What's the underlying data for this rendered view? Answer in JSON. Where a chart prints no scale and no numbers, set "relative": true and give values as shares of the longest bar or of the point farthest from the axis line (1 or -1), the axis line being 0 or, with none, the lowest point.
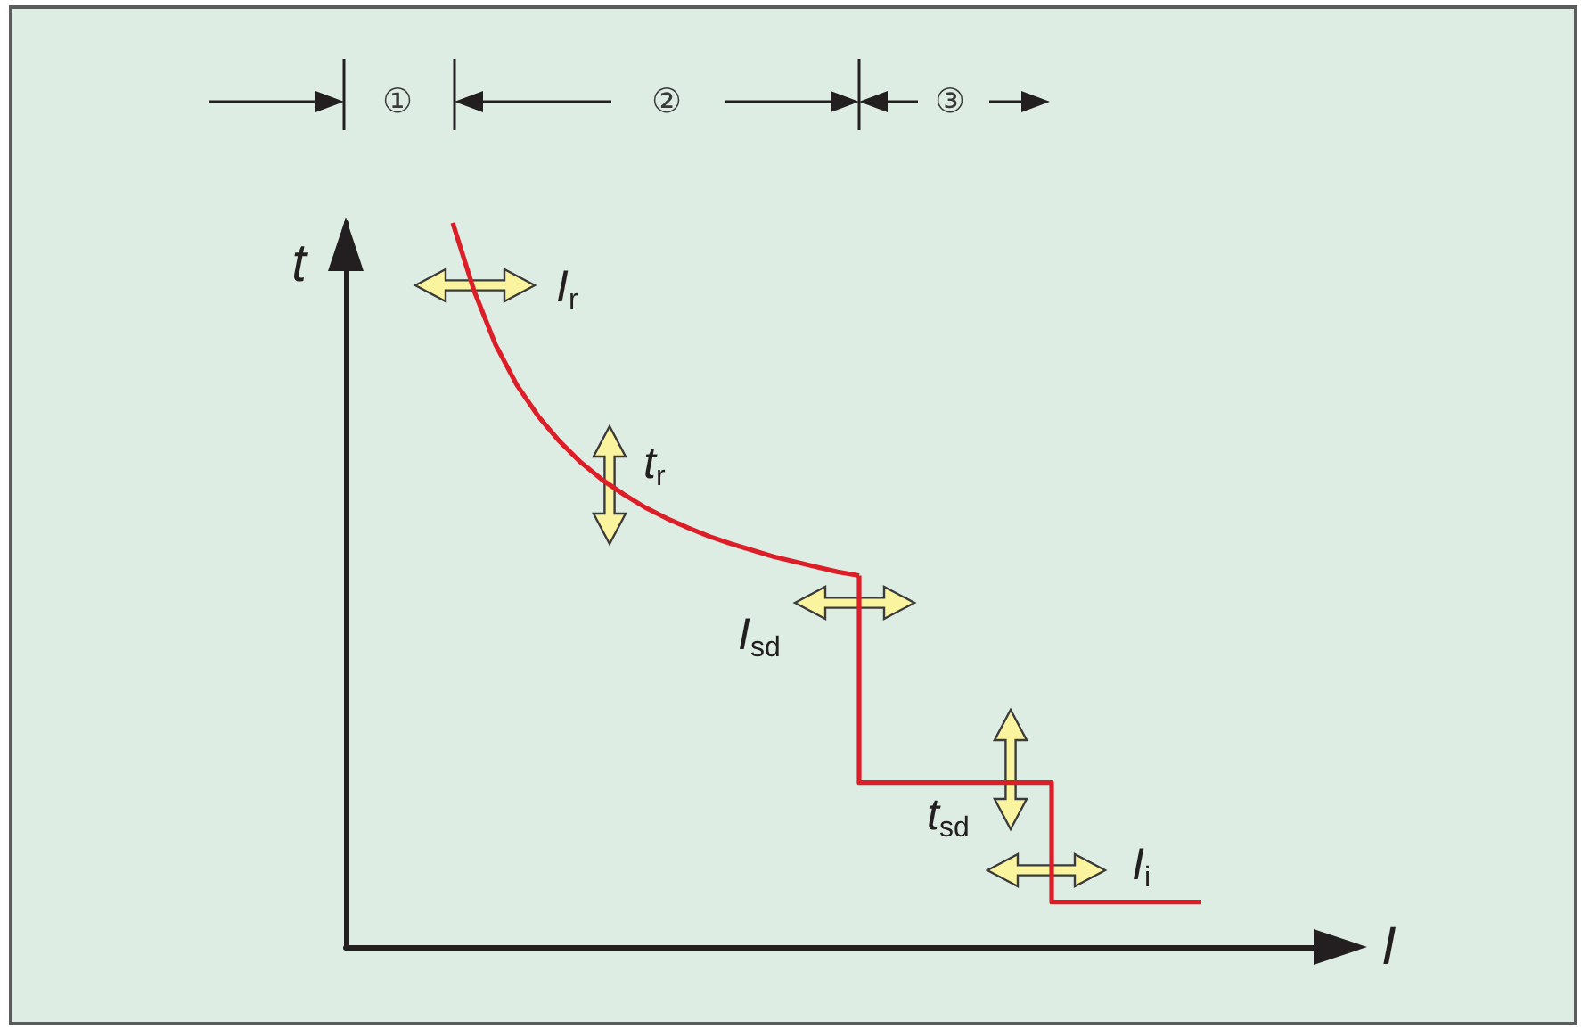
{
  "chart_data": {
    "type": "line",
    "relative": true,
    "xlabel": "I",
    "ylabel": "t",
    "categories": [
      null,
      null,
      null,
      null,
      null,
      null,
      null,
      null,
      null,
      null,
      null,
      null,
      null,
      null,
      null,
      null,
      null,
      null,
      null,
      null,
      null,
      null,
      null,
      null,
      null,
      null,
      null,
      null,
      null,
      null,
      null,
      null,
      null,
      null,
      null,
      null,
      null,
      null,
      null,
      null,
      null,
      null,
      null,
      null,
      null,
      null,
      null,
      null
    ],
    "series": [
      {
        "color": "#dc1e28",
        "values": [
          null,
          null,
          null,
          null,
          null,
          1,
          0.906,
          0.832,
          0.776,
          0.733,
          0.698,
          0.669,
          0.645,
          0.625,
          0.607,
          0.592,
          0.579,
          0.567,
          0.557,
          0.548,
          0.539,
          0.532,
          0.525,
          0.518,
          0.513,
          null,
          null,
          null,
          null,
          null,
          null,
          null,
          null,
          null,
          null,
          null,
          null,
          null,
          null,
          null,
          null,
          null,
          null,
          null,
          null,
          null,
          null,
          null
        ]
      },
      {
        "type": "step",
        "color": "#dc1e28",
        "values": [
          null,
          null,
          null,
          null,
          null,
          null,
          null,
          null,
          null,
          null,
          null,
          null,
          null,
          null,
          null,
          null,
          null,
          null,
          null,
          null,
          null,
          null,
          null,
          null,
          0.513,
          0.227,
          0.227,
          0.227,
          0.227,
          0.227,
          0.227,
          0.227,
          0.227,
          0.227,
          0.062,
          0.062,
          0.062,
          0.062,
          0.062,
          0.062,
          0.062,
          null,
          null,
          null,
          null,
          null,
          null,
          null
        ]
      }
    ],
    "annotations": [
      "①",
      "②",
      "③",
      "I$_{r}$",
      "t$_{r}$",
      "I$_{sd}$",
      "t$_{sd}$",
      "I$_{i}$"
    ]
  }
}
